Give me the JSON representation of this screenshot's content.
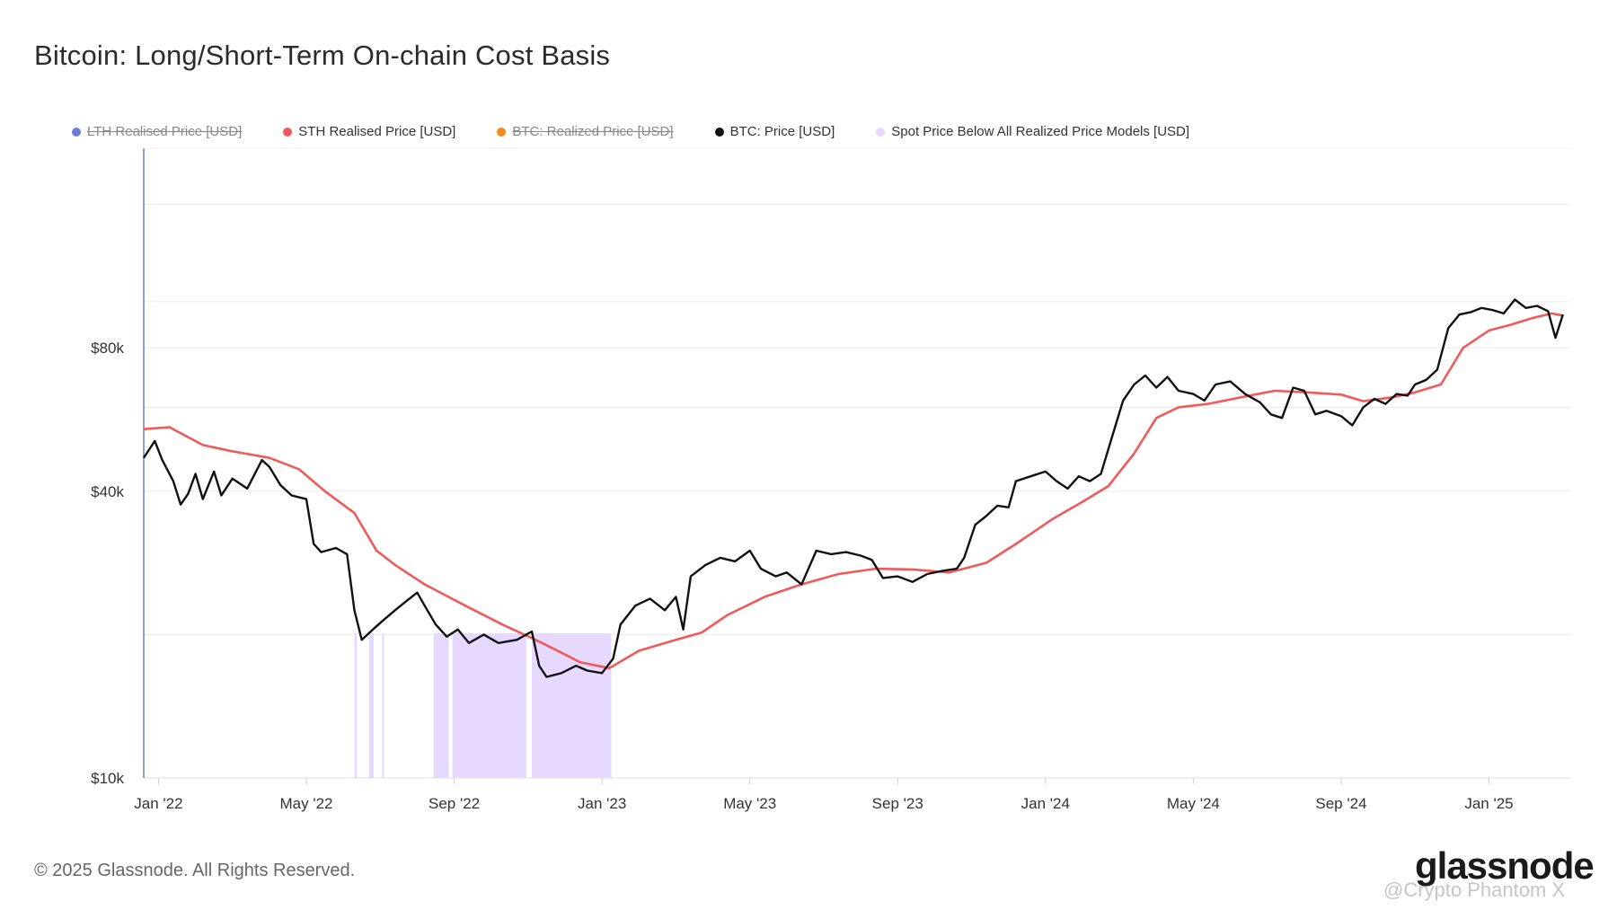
{
  "header": {
    "title": "Bitcoin: Long/Short-Term On-chain Cost Basis"
  },
  "legend": [
    {
      "label": "LTH Realised Price [USD]",
      "color": "#6b7fd6",
      "hidden": true
    },
    {
      "label": "STH Realised Price [USD]",
      "color": "#f05a5a",
      "hidden": false
    },
    {
      "label": "BTC: Realized Price [USD]",
      "color": "#f08a1a",
      "hidden": true
    },
    {
      "label": "BTC: Price [USD]",
      "color": "#111111",
      "hidden": false
    },
    {
      "label": "Spot Price Below All Realized Price Models [USD]",
      "color": "#e6d8ff",
      "hidden": false
    }
  ],
  "footer": {
    "copyright": "© 2025 Glassnode. All Rights Reserved."
  },
  "brand": {
    "logo_text": "glassnode",
    "watermark": "@Crypto Phantom X"
  },
  "chart_data": {
    "type": "line",
    "title": "Bitcoin: Long/Short-Term On-chain Cost Basis",
    "y_scale": "log",
    "ylim": [
      10000,
      210000
    ],
    "y_ticks": [
      {
        "value": 10000,
        "label": "$10k"
      },
      {
        "value": 40000,
        "label": "$40k"
      },
      {
        "value": 80000,
        "label": "$80k"
      }
    ],
    "x_range": [
      -0.4,
      38.2
    ],
    "x_ticks": [
      {
        "m": 0,
        "label": "Jan '22"
      },
      {
        "m": 4,
        "label": "May '22"
      },
      {
        "m": 8,
        "label": "Sep '22"
      },
      {
        "m": 12,
        "label": "Jan '23"
      },
      {
        "m": 16,
        "label": "May '23"
      },
      {
        "m": 20,
        "label": "Sep '23"
      },
      {
        "m": 24,
        "label": "Jan '24"
      },
      {
        "m": 28,
        "label": "May '24"
      },
      {
        "m": 32,
        "label": "Sep '24"
      },
      {
        "m": 36,
        "label": "Jan '25"
      }
    ],
    "x_unit": "months since Jan 2022",
    "series": [
      {
        "name": "STH Realised Price [USD]",
        "color": "#f05a5a",
        "points": [
          [
            -0.4,
            54000
          ],
          [
            0.3,
            54500
          ],
          [
            1.2,
            50000
          ],
          [
            2.0,
            48500
          ],
          [
            3.0,
            47000
          ],
          [
            3.8,
            44500
          ],
          [
            4.5,
            40000
          ],
          [
            5.3,
            36000
          ],
          [
            5.9,
            30000
          ],
          [
            6.4,
            28000
          ],
          [
            7.2,
            25500
          ],
          [
            8.3,
            23000
          ],
          [
            9.3,
            21000
          ],
          [
            10.2,
            19500
          ],
          [
            10.8,
            18500
          ],
          [
            11.4,
            17500
          ],
          [
            12.2,
            17000
          ],
          [
            13.0,
            18500
          ],
          [
            14.0,
            19500
          ],
          [
            14.7,
            20200
          ],
          [
            15.4,
            22000
          ],
          [
            16.4,
            24000
          ],
          [
            17.4,
            25500
          ],
          [
            18.4,
            26800
          ],
          [
            19.4,
            27500
          ],
          [
            20.4,
            27400
          ],
          [
            21.4,
            27000
          ],
          [
            22.4,
            28300
          ],
          [
            23.2,
            31000
          ],
          [
            24.2,
            35000
          ],
          [
            25.0,
            38000
          ],
          [
            25.7,
            41000
          ],
          [
            26.4,
            48000
          ],
          [
            27.0,
            57000
          ],
          [
            27.6,
            60000
          ],
          [
            28.4,
            61000
          ],
          [
            29.3,
            63000
          ],
          [
            30.2,
            65000
          ],
          [
            31.1,
            64500
          ],
          [
            32.0,
            63800
          ],
          [
            32.6,
            61800
          ],
          [
            33.4,
            63000
          ],
          [
            34.0,
            64500
          ],
          [
            34.7,
            67000
          ],
          [
            35.3,
            80000
          ],
          [
            36.0,
            87000
          ],
          [
            36.6,
            89500
          ],
          [
            37.2,
            92500
          ],
          [
            37.7,
            94500
          ],
          [
            38.0,
            93500
          ]
        ]
      },
      {
        "name": "BTC: Price [USD]",
        "color": "#111111",
        "points": [
          [
            -0.4,
            47000
          ],
          [
            -0.1,
            51000
          ],
          [
            0.1,
            46500
          ],
          [
            0.4,
            42000
          ],
          [
            0.6,
            37500
          ],
          [
            0.8,
            39500
          ],
          [
            1.0,
            43500
          ],
          [
            1.2,
            38500
          ],
          [
            1.5,
            44000
          ],
          [
            1.7,
            39200
          ],
          [
            2.0,
            42500
          ],
          [
            2.4,
            40500
          ],
          [
            2.8,
            46500
          ],
          [
            3.0,
            45000
          ],
          [
            3.3,
            41200
          ],
          [
            3.6,
            39200
          ],
          [
            4.0,
            38500
          ],
          [
            4.2,
            31000
          ],
          [
            4.4,
            29800
          ],
          [
            4.8,
            30400
          ],
          [
            5.1,
            29500
          ],
          [
            5.3,
            22500
          ],
          [
            5.5,
            19500
          ],
          [
            5.8,
            20500
          ],
          [
            6.1,
            21500
          ],
          [
            6.4,
            22500
          ],
          [
            6.7,
            23500
          ],
          [
            7.0,
            24500
          ],
          [
            7.2,
            23000
          ],
          [
            7.5,
            21000
          ],
          [
            7.8,
            19800
          ],
          [
            8.1,
            20500
          ],
          [
            8.4,
            19200
          ],
          [
            8.8,
            20000
          ],
          [
            9.2,
            19200
          ],
          [
            9.7,
            19500
          ],
          [
            10.1,
            20300
          ],
          [
            10.3,
            17200
          ],
          [
            10.5,
            16300
          ],
          [
            10.9,
            16600
          ],
          [
            11.3,
            17200
          ],
          [
            11.6,
            16800
          ],
          [
            12.0,
            16600
          ],
          [
            12.3,
            17800
          ],
          [
            12.5,
            21000
          ],
          [
            12.9,
            23000
          ],
          [
            13.3,
            23800
          ],
          [
            13.7,
            22500
          ],
          [
            14.0,
            24000
          ],
          [
            14.2,
            20500
          ],
          [
            14.4,
            26500
          ],
          [
            14.8,
            28000
          ],
          [
            15.2,
            29000
          ],
          [
            15.6,
            28500
          ],
          [
            16.0,
            30000
          ],
          [
            16.3,
            27500
          ],
          [
            16.7,
            26500
          ],
          [
            17.0,
            27000
          ],
          [
            17.4,
            25500
          ],
          [
            17.8,
            30000
          ],
          [
            18.2,
            29500
          ],
          [
            18.6,
            29800
          ],
          [
            19.0,
            29300
          ],
          [
            19.3,
            28700
          ],
          [
            19.6,
            26300
          ],
          [
            20.0,
            26500
          ],
          [
            20.4,
            25800
          ],
          [
            20.8,
            26800
          ],
          [
            21.2,
            27200
          ],
          [
            21.6,
            27500
          ],
          [
            21.8,
            29000
          ],
          [
            22.1,
            34000
          ],
          [
            22.4,
            35500
          ],
          [
            22.7,
            37300
          ],
          [
            23.0,
            37000
          ],
          [
            23.2,
            42000
          ],
          [
            23.6,
            43000
          ],
          [
            24.0,
            44000
          ],
          [
            24.3,
            42000
          ],
          [
            24.6,
            40500
          ],
          [
            24.9,
            43000
          ],
          [
            25.2,
            42000
          ],
          [
            25.5,
            43500
          ],
          [
            25.8,
            52000
          ],
          [
            26.1,
            62000
          ],
          [
            26.4,
            67000
          ],
          [
            26.7,
            70000
          ],
          [
            27.0,
            66000
          ],
          [
            27.3,
            69500
          ],
          [
            27.6,
            65000
          ],
          [
            28.0,
            64000
          ],
          [
            28.3,
            62000
          ],
          [
            28.6,
            67000
          ],
          [
            29.0,
            68000
          ],
          [
            29.4,
            64000
          ],
          [
            29.8,
            61500
          ],
          [
            30.1,
            58000
          ],
          [
            30.4,
            57000
          ],
          [
            30.7,
            66000
          ],
          [
            31.0,
            65000
          ],
          [
            31.3,
            58000
          ],
          [
            31.6,
            59000
          ],
          [
            32.0,
            57500
          ],
          [
            32.3,
            55000
          ],
          [
            32.6,
            60000
          ],
          [
            32.9,
            62500
          ],
          [
            33.2,
            61000
          ],
          [
            33.5,
            64000
          ],
          [
            33.8,
            63500
          ],
          [
            34.0,
            67000
          ],
          [
            34.3,
            68500
          ],
          [
            34.6,
            72000
          ],
          [
            34.9,
            88000
          ],
          [
            35.2,
            94000
          ],
          [
            35.5,
            95000
          ],
          [
            35.8,
            97000
          ],
          [
            36.1,
            96000
          ],
          [
            36.4,
            94500
          ],
          [
            36.7,
            101000
          ],
          [
            37.0,
            97000
          ],
          [
            37.3,
            98000
          ],
          [
            37.6,
            95500
          ],
          [
            37.8,
            84000
          ],
          [
            38.0,
            94000
          ]
        ]
      }
    ],
    "shaded_regions": {
      "name": "Spot Price Below All Realized Price Models [USD]",
      "color": "#e6d8ff",
      "intervals": [
        [
          5.3,
          5.36
        ],
        [
          5.7,
          5.82
        ],
        [
          6.05,
          6.1
        ],
        [
          7.45,
          7.85
        ],
        [
          7.95,
          9.95
        ],
        [
          10.1,
          12.25
        ]
      ]
    }
  }
}
